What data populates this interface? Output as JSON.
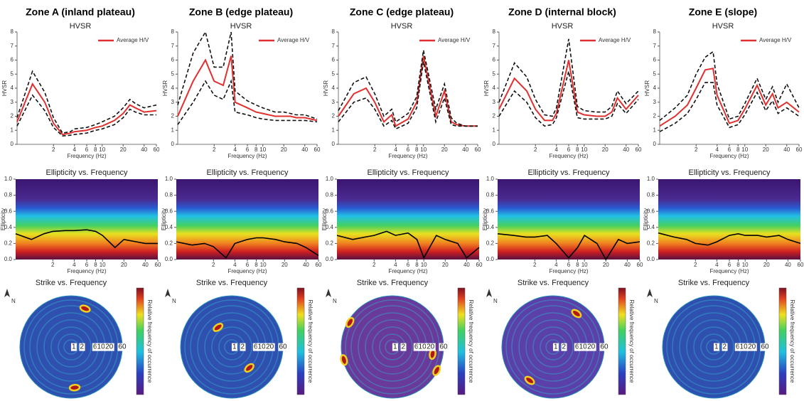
{
  "chart_data": [
    {
      "type": "line",
      "zone_title": "Zone A (inland plateau)",
      "title": "HVSR",
      "xlabel": "Frequency (Hz)",
      "ylabel": "HVSR",
      "log_x": true,
      "xlim": [
        0.6,
        60
      ],
      "ylim": [
        0,
        8
      ],
      "xticks": [
        2,
        4,
        6,
        8,
        10,
        20,
        40,
        60
      ],
      "yticks": [
        0,
        1,
        2,
        3,
        4,
        5,
        6,
        7,
        8
      ],
      "x": [
        0.6,
        1,
        1.5,
        2,
        2.7,
        3.5,
        4,
        6,
        8,
        10,
        15,
        20,
        25,
        30,
        40,
        60
      ],
      "series": [
        {
          "name": "Average H/V",
          "color": "#e03030",
          "values": [
            1.6,
            4.3,
            3.0,
            1.5,
            0.7,
            0.8,
            0.9,
            1.0,
            1.2,
            1.3,
            1.7,
            2.2,
            2.8,
            2.6,
            2.3,
            2.4
          ]
        },
        {
          "color": "#111111",
          "style": "dashed",
          "values": [
            1.9,
            5.2,
            3.7,
            1.9,
            0.8,
            0.9,
            1.1,
            1.2,
            1.4,
            1.6,
            2.0,
            2.6,
            3.2,
            2.9,
            2.6,
            2.8
          ]
        },
        {
          "color": "#111111",
          "style": "dashed",
          "values": [
            1.3,
            3.5,
            2.4,
            1.2,
            0.6,
            0.65,
            0.7,
            0.8,
            1.0,
            1.1,
            1.4,
            1.9,
            2.5,
            2.3,
            2.1,
            2.1
          ]
        }
      ]
    },
    {
      "type": "heatmap",
      "title": "Ellipticity vs. Frequency",
      "xlabel": "Frequency (Hz)",
      "ylabel": "Ellipticity",
      "log_x": true,
      "xlim": [
        0.6,
        60
      ],
      "ylim": [
        0,
        1
      ],
      "xticks": [
        2,
        4,
        6,
        8,
        10,
        20,
        40,
        60
      ],
      "yticks": [
        {
          "value": 0,
          "label": "0.0"
        },
        0.2,
        0.4,
        0.6,
        0.8,
        {
          "value": 1,
          "label": "1.0"
        }
      ],
      "x": [
        0.6,
        1,
        1.5,
        2,
        3,
        4,
        6,
        8,
        10,
        15,
        20,
        30,
        40,
        60
      ],
      "color": "#000000",
      "values": [
        0.32,
        0.25,
        0.32,
        0.35,
        0.36,
        0.36,
        0.37,
        0.35,
        0.3,
        0.15,
        0.25,
        0.22,
        0.2,
        0.2
      ]
    },
    {
      "type": "polar",
      "title": "Strike vs. Frequency",
      "north": "N",
      "colorbar_label": "Relative frequency of occurrence",
      "log_r": true,
      "rlim": [
        0.8,
        60
      ],
      "rticks": [
        1,
        2,
        6,
        10,
        20,
        60
      ],
      "hotspots": [
        {
          "azimuth": 20,
          "frequency": 25
        },
        {
          "azimuth": 175,
          "frequency": 25
        }
      ]
    },
    {
      "type": "line",
      "zone_title": "Zone B (edge plateau)",
      "title": "HVSR",
      "xlabel": "Frequency (Hz)",
      "ylabel": "HVSR",
      "log_x": true,
      "xlim": [
        0.6,
        60
      ],
      "ylim": [
        0,
        8
      ],
      "xticks": [
        2,
        4,
        6,
        8,
        10,
        20,
        40,
        60
      ],
      "yticks": [
        0,
        1,
        2,
        3,
        4,
        5,
        6,
        7,
        8
      ],
      "x": [
        0.6,
        1,
        1.5,
        2,
        2.7,
        3.5,
        4,
        6,
        8,
        10,
        15,
        20,
        25,
        30,
        40,
        60
      ],
      "series": [
        {
          "name": "Average H/V",
          "color": "#e03030",
          "values": [
            2.0,
            4.5,
            6.0,
            4.5,
            4.2,
            6.3,
            3.0,
            2.6,
            2.3,
            2.2,
            2.0,
            2.0,
            2.0,
            1.9,
            1.9,
            1.7
          ]
        },
        {
          "color": "#111111",
          "style": "dashed",
          "values": [
            2.8,
            6.5,
            8.0,
            5.5,
            5.5,
            8.0,
            3.8,
            3.1,
            2.8,
            2.6,
            2.3,
            2.3,
            2.2,
            2.1,
            2.1,
            1.8
          ]
        },
        {
          "color": "#111111",
          "style": "dashed",
          "values": [
            1.4,
            3.0,
            4.5,
            3.5,
            3.2,
            4.5,
            2.3,
            2.1,
            1.9,
            1.8,
            1.7,
            1.7,
            1.7,
            1.7,
            1.7,
            1.6
          ]
        }
      ]
    },
    {
      "type": "heatmap",
      "title": "Ellipticity vs. Frequency",
      "xlabel": "Frequency (Hz)",
      "ylabel": "Ellipticity",
      "log_x": true,
      "xlim": [
        0.6,
        60
      ],
      "ylim": [
        0,
        1
      ],
      "xticks": [
        2,
        4,
        6,
        8,
        10,
        20,
        40,
        60
      ],
      "yticks": [
        {
          "value": 0,
          "label": "0.0"
        },
        0.2,
        0.4,
        0.6,
        0.8,
        {
          "value": 1,
          "label": "1.0"
        }
      ],
      "x": [
        0.6,
        1,
        1.5,
        2,
        3,
        4,
        6,
        8,
        10,
        15,
        20,
        30,
        40,
        60
      ],
      "color": "#000000",
      "values": [
        0.22,
        0.18,
        0.2,
        0.16,
        0.02,
        0.2,
        0.25,
        0.27,
        0.27,
        0.25,
        0.22,
        0.2,
        0.15,
        0.05
      ]
    },
    {
      "type": "polar",
      "title": "Strike vs. Frequency",
      "north": "N",
      "colorbar_label": "Relative frequency of occurrence",
      "log_r": true,
      "rlim": [
        0.8,
        60
      ],
      "rticks": [
        1,
        2,
        6,
        10,
        20,
        60
      ],
      "hotspots": [
        {
          "azimuth": 325,
          "frequency": 6
        },
        {
          "azimuth": 140,
          "frequency": 8
        }
      ]
    },
    {
      "type": "line",
      "zone_title": "Zone C (edge plateau)",
      "title": "HVSR",
      "xlabel": "Frequency (Hz)",
      "ylabel": "HVSR",
      "log_x": true,
      "xlim": [
        0.6,
        60
      ],
      "ylim": [
        0,
        8
      ],
      "xticks": [
        2,
        4,
        6,
        8,
        10,
        20,
        40,
        60
      ],
      "yticks": [
        0,
        1,
        2,
        3,
        4,
        5,
        6,
        7,
        8
      ],
      "x": [
        0.6,
        1,
        1.5,
        2,
        2.7,
        3.5,
        4,
        6,
        8,
        10,
        15,
        20,
        25,
        30,
        40,
        60
      ],
      "series": [
        {
          "name": "Average H/V",
          "color": "#e03030",
          "values": [
            2.0,
            3.6,
            4.0,
            3.0,
            1.6,
            2.1,
            1.3,
            1.8,
            3.0,
            6.3,
            2.0,
            3.8,
            1.6,
            1.4,
            1.3,
            1.3
          ]
        },
        {
          "color": "#111111",
          "style": "dashed",
          "values": [
            2.4,
            4.4,
            4.8,
            3.6,
            2.0,
            2.5,
            1.6,
            2.2,
            3.4,
            6.7,
            2.5,
            4.3,
            1.9,
            1.5,
            1.3,
            1.3
          ]
        },
        {
          "color": "#111111",
          "style": "dashed",
          "values": [
            1.6,
            3.0,
            3.3,
            2.5,
            1.3,
            1.7,
            1.1,
            1.5,
            2.6,
            5.9,
            1.6,
            3.3,
            1.4,
            1.3,
            1.3,
            1.3
          ]
        }
      ]
    },
    {
      "type": "heatmap",
      "title": "Ellipticity vs. Frequency",
      "xlabel": "Frequency (Hz)",
      "ylabel": "Ellipticity",
      "log_x": true,
      "xlim": [
        0.6,
        60
      ],
      "ylim": [
        0,
        1
      ],
      "xticks": [
        2,
        4,
        6,
        8,
        10,
        20,
        40,
        60
      ],
      "yticks": [
        {
          "value": 0,
          "label": "0.0"
        },
        0.2,
        0.4,
        0.6,
        0.8,
        {
          "value": 1,
          "label": "1.0"
        }
      ],
      "x": [
        0.6,
        1,
        1.5,
        2,
        3,
        4,
        6,
        8,
        10,
        15,
        20,
        30,
        40,
        60
      ],
      "color": "#000000",
      "values": [
        0.3,
        0.25,
        0.28,
        0.3,
        0.35,
        0.3,
        0.33,
        0.25,
        0.02,
        0.3,
        0.25,
        0.2,
        0.02,
        0.15
      ]
    },
    {
      "type": "polar",
      "title": "Strike vs. Frequency",
      "north": "N",
      "colorbar_label": "Relative frequency of occurrence",
      "log_r": true,
      "rlim": [
        0.8,
        60
      ],
      "rticks": [
        1,
        2,
        6,
        10,
        20,
        60
      ],
      "hotspots": [
        {
          "azimuth": 300,
          "frequency": 50
        },
        {
          "azimuth": 255,
          "frequency": 55
        },
        {
          "azimuth": 100,
          "frequency": 25
        },
        {
          "azimuth": 118,
          "frequency": 55
        }
      ]
    },
    {
      "type": "line",
      "zone_title": "Zone D (internal block)",
      "title": "HVSR",
      "xlabel": "Frequency (Hz)",
      "ylabel": "HVSR",
      "log_x": true,
      "xlim": [
        0.6,
        60
      ],
      "ylim": [
        0,
        8
      ],
      "xticks": [
        2,
        4,
        6,
        8,
        10,
        20,
        40,
        60
      ],
      "yticks": [
        0,
        1,
        2,
        3,
        4,
        5,
        6,
        7,
        8
      ],
      "x": [
        0.6,
        1,
        1.5,
        2,
        2.7,
        3.5,
        4,
        6,
        8,
        10,
        15,
        20,
        25,
        30,
        40,
        60
      ],
      "series": [
        {
          "name": "Average H/V",
          "color": "#e03030",
          "values": [
            2.5,
            4.7,
            3.8,
            2.5,
            1.7,
            1.7,
            2.2,
            6.0,
            2.3,
            2.1,
            2.0,
            2.0,
            2.3,
            3.3,
            2.5,
            3.5
          ]
        },
        {
          "color": "#111111",
          "style": "dashed",
          "values": [
            3.0,
            5.8,
            4.8,
            3.2,
            2.1,
            2.0,
            2.6,
            7.5,
            2.7,
            2.4,
            2.3,
            2.3,
            2.7,
            3.8,
            2.9,
            3.8
          ]
        },
        {
          "color": "#111111",
          "style": "dashed",
          "values": [
            2.0,
            3.8,
            3.0,
            1.9,
            1.3,
            1.4,
            1.9,
            5.2,
            1.9,
            1.8,
            1.8,
            1.8,
            2.0,
            2.9,
            2.2,
            3.2
          ]
        }
      ]
    },
    {
      "type": "heatmap",
      "title": "Ellipticity vs. Frequency",
      "xlabel": "Frequency (Hz)",
      "ylabel": "Ellipticity",
      "log_x": true,
      "xlim": [
        0.6,
        60
      ],
      "ylim": [
        0,
        1
      ],
      "xticks": [
        2,
        4,
        6,
        8,
        10,
        20,
        40,
        60
      ],
      "yticks": [
        {
          "value": 0,
          "label": "0.0"
        },
        0.2,
        0.4,
        0.6,
        0.8,
        {
          "value": 1,
          "label": "1.0"
        }
      ],
      "x": [
        0.6,
        1,
        1.5,
        2,
        3,
        4,
        6,
        8,
        10,
        15,
        20,
        30,
        40,
        60
      ],
      "color": "#000000",
      "values": [
        0.32,
        0.3,
        0.28,
        0.28,
        0.3,
        0.2,
        0.02,
        0.15,
        0.3,
        0.2,
        0.0,
        0.25,
        0.2,
        0.22
      ]
    },
    {
      "type": "polar",
      "title": "Strike vs. Frequency",
      "north": "N",
      "colorbar_label": "Relative frequency of occurrence",
      "log_r": true,
      "rlim": [
        0.8,
        60
      ],
      "rticks": [
        1,
        2,
        6,
        10,
        20,
        60
      ],
      "hotspots": [
        {
          "azimuth": 35,
          "frequency": 25
        },
        {
          "azimuth": 215,
          "frequency": 25
        }
      ]
    },
    {
      "type": "line",
      "zone_title": "Zone E (slope)",
      "title": "HVSR",
      "xlabel": "Frequency (Hz)",
      "ylabel": "HVSR",
      "log_x": true,
      "xlim": [
        0.6,
        60
      ],
      "ylim": [
        0,
        8
      ],
      "xticks": [
        2,
        4,
        6,
        8,
        10,
        20,
        40,
        60
      ],
      "yticks": [
        0,
        1,
        2,
        3,
        4,
        5,
        6,
        7,
        8
      ],
      "x": [
        0.6,
        1,
        1.5,
        2,
        2.7,
        3.5,
        4,
        6,
        8,
        10,
        15,
        20,
        25,
        30,
        40,
        60
      ],
      "series": [
        {
          "name": "Average H/V",
          "color": "#e03030",
          "values": [
            1.3,
            2.0,
            2.8,
            4.0,
            5.3,
            5.4,
            3.5,
            1.5,
            1.7,
            2.5,
            4.2,
            2.8,
            3.6,
            2.6,
            3.0,
            2.3
          ]
        },
        {
          "color": "#111111",
          "style": "dashed",
          "values": [
            1.7,
            2.6,
            3.5,
            5.0,
            6.2,
            6.6,
            4.3,
            1.8,
            2.0,
            2.9,
            4.7,
            3.2,
            4.1,
            3.0,
            4.3,
            2.6
          ]
        },
        {
          "color": "#111111",
          "style": "dashed",
          "values": [
            0.9,
            1.5,
            2.2,
            3.2,
            4.4,
            4.4,
            2.8,
            1.2,
            1.4,
            2.1,
            3.7,
            2.4,
            3.1,
            2.2,
            2.6,
            2.0
          ]
        }
      ]
    },
    {
      "type": "heatmap",
      "title": "Ellipticity vs. Frequency",
      "xlabel": "Frequency (Hz)",
      "ylabel": "Ellipticity",
      "log_x": true,
      "xlim": [
        0.6,
        60
      ],
      "ylim": [
        0,
        1
      ],
      "xticks": [
        2,
        4,
        6,
        8,
        10,
        20,
        40,
        60
      ],
      "yticks": [
        {
          "value": 0,
          "label": "0.0"
        },
        0.2,
        0.4,
        0.6,
        0.8,
        {
          "value": 1,
          "label": "1.0"
        }
      ],
      "x": [
        0.6,
        1,
        1.5,
        2,
        3,
        4,
        6,
        8,
        10,
        15,
        20,
        30,
        40,
        60
      ],
      "color": "#000000",
      "values": [
        0.33,
        0.28,
        0.25,
        0.2,
        0.18,
        0.22,
        0.3,
        0.32,
        0.3,
        0.3,
        0.28,
        0.3,
        0.25,
        0.2
      ]
    },
    {
      "type": "polar",
      "title": "Strike vs. Frequency",
      "north": "N",
      "colorbar_label": "Relative frequency of occurrence",
      "log_r": true,
      "rlim": [
        0.8,
        60
      ],
      "rticks": [
        1,
        2,
        6,
        10,
        20,
        60
      ],
      "hotspots": []
    }
  ]
}
